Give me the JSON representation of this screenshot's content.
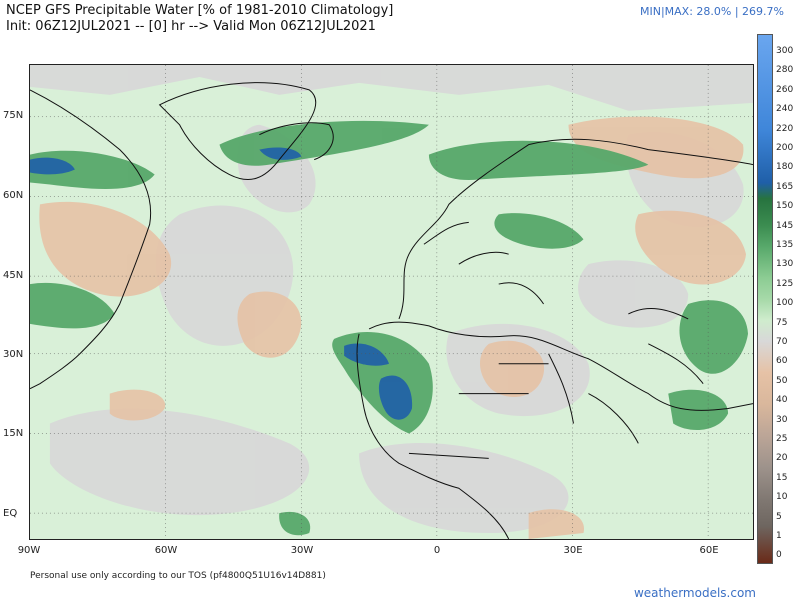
{
  "header": {
    "title_line1": "NCEP GFS Precipitable Water [% of 1981-2010 Climatology]",
    "title_line2": "Init: 06Z12JUL2021 -- [0] hr --> Valid Mon 06Z12JUL2021",
    "minmax": "MIN|MAX: 28.0% | 269.7%"
  },
  "map": {
    "lat_labels": [
      "75N",
      "60N",
      "45N",
      "30N",
      "15N",
      "EQ"
    ],
    "lon_labels": [
      "90W",
      "60W",
      "30W",
      "0",
      "30E",
      "60E"
    ]
  },
  "colorbar": {
    "labels": [
      "300",
      "280",
      "260",
      "240",
      "220",
      "200",
      "180",
      "165",
      "150",
      "145",
      "135",
      "130",
      "125",
      "100",
      "75",
      "70",
      "60",
      "50",
      "40",
      "30",
      "25",
      "20",
      "15",
      "10",
      "5",
      "1",
      "0"
    ],
    "colors": {
      "dark_blue": "#1f5fa8",
      "mid_blue": "#3f86d9",
      "light_blue": "#7fb3ee",
      "dark_green": "#27733f",
      "mid_green": "#57a86a",
      "light_green": "#a6d9a8",
      "pale_green": "#d9f0d8",
      "gray": "#d8d8d8",
      "tan": "#e6c2a6",
      "light_brown": "#c7a38a",
      "gray_brown": "#8e867f",
      "dark_brown": "#6a2a18"
    }
  },
  "footer": {
    "tos": "Personal use only according to our TOS (pf4800Q51U16v14D881)",
    "brand": "weathermodels.com"
  }
}
